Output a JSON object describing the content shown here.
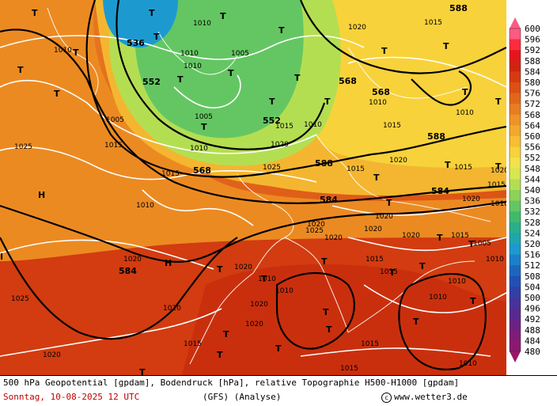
{
  "map": {
    "height_labels": [
      {
        "text": "588"
      },
      {
        "text": "536"
      },
      {
        "text": "552"
      },
      {
        "text": "552"
      },
      {
        "text": "568"
      },
      {
        "text": "588"
      },
      {
        "text": "568"
      },
      {
        "text": "588"
      },
      {
        "text": "584"
      },
      {
        "text": "584"
      },
      {
        "text": "584"
      },
      {
        "text": "568"
      }
    ],
    "pressure_labels": [
      {
        "text": "1020"
      },
      {
        "text": "1015"
      },
      {
        "text": "1010"
      },
      {
        "text": "1010"
      },
      {
        "text": "1010"
      },
      {
        "text": "1005"
      },
      {
        "text": "1010"
      },
      {
        "text": "1005"
      },
      {
        "text": "1010"
      },
      {
        "text": "1015"
      },
      {
        "text": "1010"
      },
      {
        "text": "1005"
      },
      {
        "text": "1015"
      },
      {
        "text": "1025"
      },
      {
        "text": "1015"
      },
      {
        "text": "1010"
      },
      {
        "text": "1020"
      },
      {
        "text": "1025"
      },
      {
        "text": "1015"
      },
      {
        "text": "1020"
      },
      {
        "text": "1010"
      },
      {
        "text": "1015"
      },
      {
        "text": "1020"
      },
      {
        "text": "1010"
      },
      {
        "text": "1015"
      },
      {
        "text": "1020"
      },
      {
        "text": "1025"
      },
      {
        "text": "1020"
      },
      {
        "text": "1020"
      },
      {
        "text": "1020"
      },
      {
        "text": "1020"
      },
      {
        "text": "1020"
      },
      {
        "text": "1015"
      },
      {
        "text": "1015"
      },
      {
        "text": "1010"
      },
      {
        "text": "1010"
      },
      {
        "text": "1005"
      },
      {
        "text": "1020"
      },
      {
        "text": "1015"
      },
      {
        "text": "1020"
      },
      {
        "text": "1010"
      },
      {
        "text": "1010"
      },
      {
        "text": "1015"
      },
      {
        "text": "1020"
      },
      {
        "text": "1025"
      },
      {
        "text": "1020"
      },
      {
        "text": "1020"
      },
      {
        "text": "1015"
      },
      {
        "text": "1020"
      },
      {
        "text": "1015"
      },
      {
        "text": "1010"
      },
      {
        "text": "1010"
      },
      {
        "text": "1015"
      },
      {
        "text": "1010"
      }
    ],
    "high_low_markers": [
      {
        "text": "T"
      },
      {
        "text": "T"
      },
      {
        "text": "T"
      },
      {
        "text": "T"
      },
      {
        "text": "T"
      },
      {
        "text": "T"
      },
      {
        "text": "T"
      },
      {
        "text": "T"
      },
      {
        "text": "T"
      },
      {
        "text": "T"
      },
      {
        "text": "T"
      },
      {
        "text": "T"
      },
      {
        "text": "T"
      },
      {
        "text": "T"
      },
      {
        "text": "T"
      },
      {
        "text": "T"
      },
      {
        "text": "T"
      },
      {
        "text": "T"
      },
      {
        "text": "T"
      },
      {
        "text": "T"
      },
      {
        "text": "T"
      },
      {
        "text": "T"
      },
      {
        "text": "T"
      },
      {
        "text": "T"
      },
      {
        "text": "T"
      },
      {
        "text": "T"
      },
      {
        "text": "T"
      },
      {
        "text": "T"
      },
      {
        "text": "T"
      },
      {
        "text": "T"
      },
      {
        "text": "T"
      },
      {
        "text": "T"
      },
      {
        "text": "T"
      },
      {
        "text": "T"
      },
      {
        "text": "T"
      },
      {
        "text": "T"
      },
      {
        "text": "T"
      },
      {
        "text": "H"
      },
      {
        "text": "H"
      },
      {
        "text": "I"
      }
    ]
  },
  "legend": {
    "unit_note": "",
    "levels": [
      "600",
      "596",
      "592",
      "588",
      "584",
      "580",
      "576",
      "572",
      "568",
      "564",
      "560",
      "556",
      "552",
      "548",
      "544",
      "540",
      "536",
      "532",
      "528",
      "524",
      "520",
      "516",
      "512",
      "508",
      "504",
      "500",
      "496",
      "492",
      "488",
      "484",
      "480"
    ],
    "colors": [
      "#ff5a82",
      "#ff2a3e",
      "#e4161c",
      "#d02410",
      "#d63a10",
      "#dc5012",
      "#e2661a",
      "#e87c20",
      "#f09226",
      "#f2a82c",
      "#f6be32",
      "#f8d23a",
      "#f2e24a",
      "#d8e650",
      "#b4de52",
      "#8cd25a",
      "#64c662",
      "#40ba6a",
      "#28b08a",
      "#1ea6ac",
      "#1c9ad0",
      "#1a80cc",
      "#1c66c0",
      "#2250b4",
      "#3040a8",
      "#44349c",
      "#582a90",
      "#6c2284",
      "#7e1c7a",
      "#8e1870",
      "#9a146a"
    ]
  },
  "footer": {
    "line1": "500 hPa Geopotential [gpdam], Bodendruck [hPa], relative Topographie H500-H1000 [gpdam]",
    "date": "Sonntag, 10-08-2025  12 UTC",
    "model": "(GFS)  (Analyse)",
    "copyright": "www.wetter3.de"
  }
}
